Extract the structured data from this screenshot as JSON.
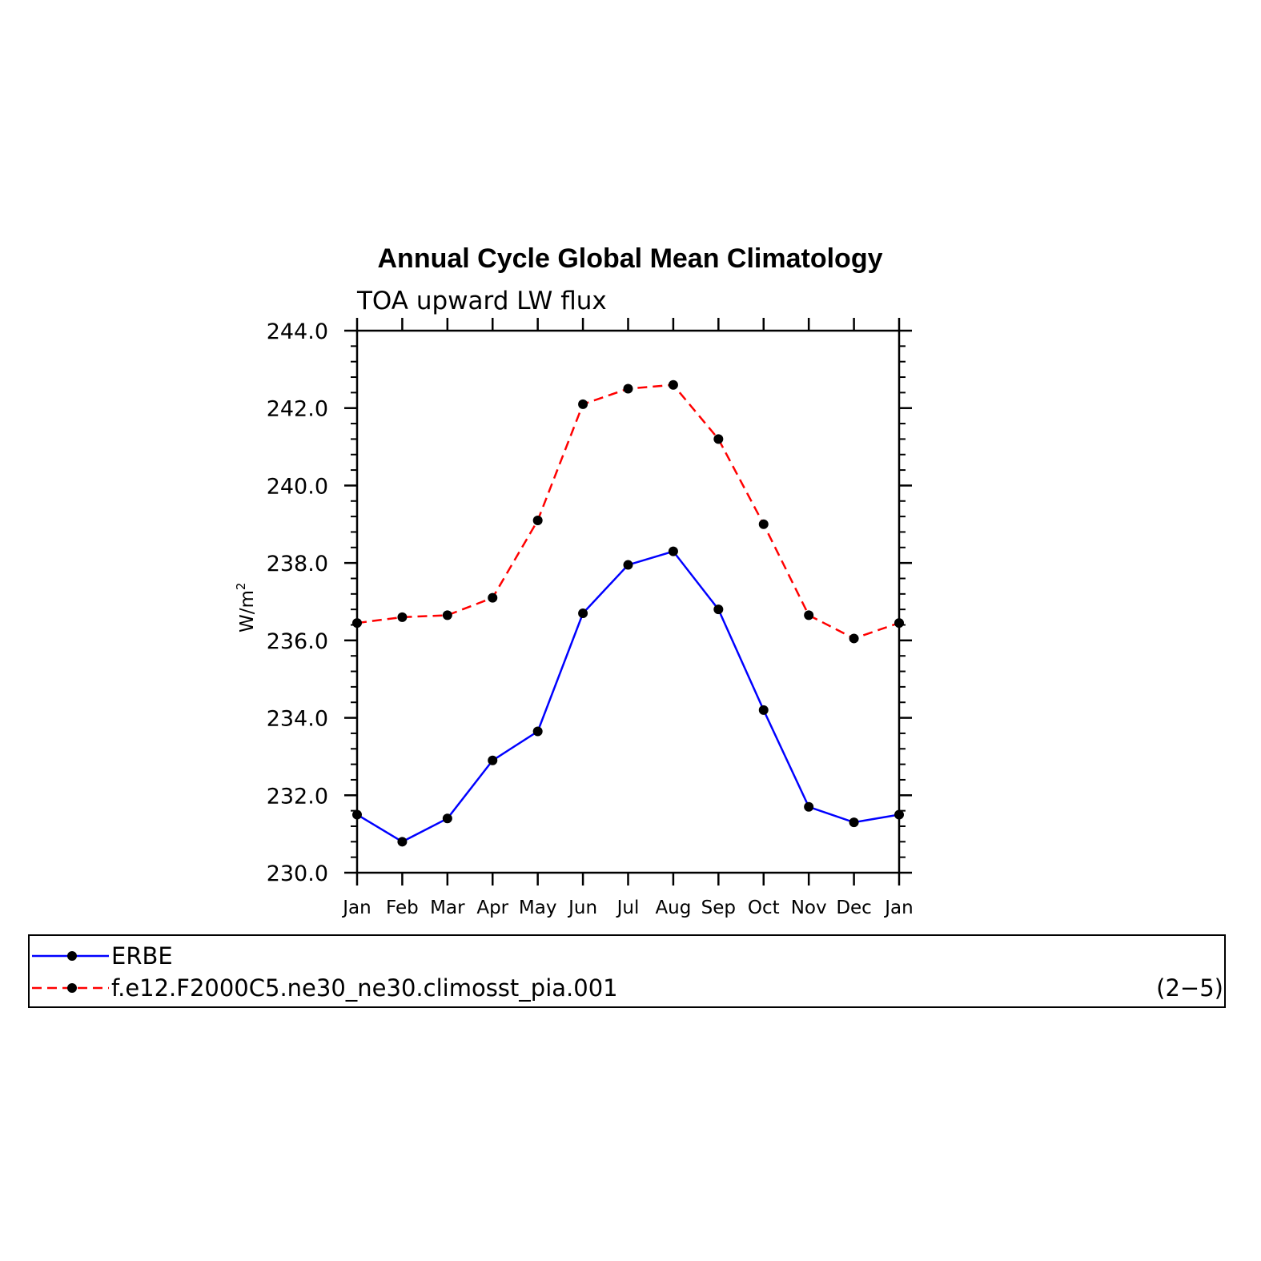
{
  "chart_data": {
    "type": "line",
    "title": "Annual Cycle Global Mean Climatology",
    "subtitle": "TOA upward LW flux",
    "ylabel": "W/m",
    "ylabel_sup": "2",
    "ylim": [
      230.0,
      244.0
    ],
    "yticks": [
      "230.0",
      "232.0",
      "234.0",
      "236.0",
      "238.0",
      "240.0",
      "242.0",
      "244.0"
    ],
    "categories": [
      "Jan",
      "Feb",
      "Mar",
      "Apr",
      "May",
      "Jun",
      "Jul",
      "Aug",
      "Sep",
      "Oct",
      "Nov",
      "Dec",
      "Jan"
    ],
    "grid": false,
    "legend_position": "bottom",
    "series": [
      {
        "name": "ERBE",
        "color": "#0000ff",
        "line_style": "solid",
        "marker": "filled-circle",
        "values": [
          231.5,
          230.8,
          231.4,
          232.9,
          233.65,
          236.7,
          237.95,
          238.3,
          236.8,
          234.2,
          231.7,
          231.3,
          231.5
        ]
      },
      {
        "name": "f.e12.F2000C5.ne30_ne30.climosst_pia.001",
        "color": "#ff0000",
        "line_style": "dashed",
        "marker": "filled-circle",
        "values": [
          236.45,
          236.6,
          236.65,
          237.1,
          239.1,
          242.1,
          242.5,
          242.6,
          241.2,
          239.0,
          236.65,
          236.05,
          236.45
        ]
      }
    ],
    "legend_note": "(2−5)"
  }
}
